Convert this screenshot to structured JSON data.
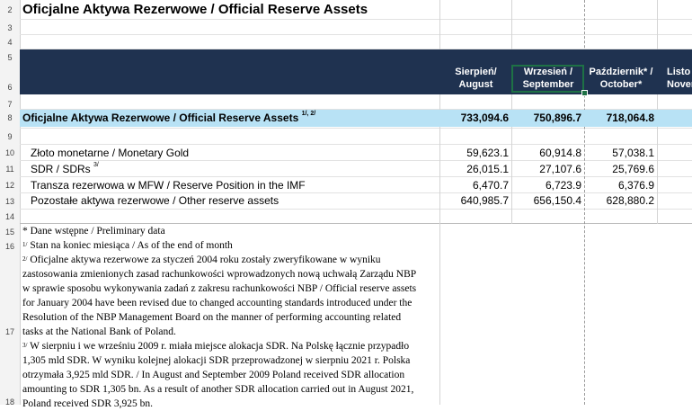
{
  "title": "Oficjalne Aktywa Rezerwowe / Official Reserve Assets",
  "row_numbers": [
    "2",
    "3",
    "4",
    "5",
    "6",
    "7",
    "8",
    "9",
    "10",
    "11",
    "12",
    "13",
    "14",
    "15",
    "16",
    "17",
    "18"
  ],
  "columns": [
    {
      "line1": "Sierpień/",
      "line2": "August"
    },
    {
      "line1": "Wrzesień /",
      "line2": "September"
    },
    {
      "line1": "Październik* /",
      "line2": "October*"
    },
    {
      "line1": "Listo",
      "line2": "Nover"
    }
  ],
  "main_row": {
    "label": "Oficjalne Aktywa Rezerwowe / Official Reserve Assets",
    "sup": "1/, 2/",
    "values": [
      "733,094.6",
      "750,896.7",
      "718,064.8"
    ]
  },
  "rows": [
    {
      "label": "Złoto monetarne / Monetary Gold",
      "sup": "",
      "values": [
        "59,623.1",
        "60,914.8",
        "57,038.1"
      ]
    },
    {
      "label": "SDR / SDRs",
      "sup": "3/",
      "values": [
        "26,015.1",
        "27,107.6",
        "25,769.6"
      ]
    },
    {
      "label": "Transza rezerwowa w MFW / Reserve Position in the IMF",
      "sup": "",
      "values": [
        "6,470.7",
        "6,723.9",
        "6,376.9"
      ]
    },
    {
      "label": "Pozostałe aktywa rezerwowe / Other reserve assets",
      "sup": "",
      "values": [
        "640,985.7",
        "656,150.4",
        "628,880.2"
      ]
    }
  ],
  "notes": {
    "n15": "* Dane wstępne / Preliminary data",
    "n16_sup": "1/",
    "n16": "Stan na koniec miesiąca / As of the end of month",
    "n17_sup": "2/",
    "n17_lines": [
      "Oficjalne aktywa rezerwowe za styczeń 2004 roku zostały zweryfikowane w wyniku",
      "zastosowania zmienionych zasad rachunkowości wprowadzonych nową uchwałą Zarządu NBP",
      "w sprawie sposobu wykonywania zadań z zakresu rachunkowości NBP / Official reserve assets",
      "for January 2004 have been revised due to changed accounting standards introduced under the",
      "Resolution of the NBP Management Board on the manner of performing accounting related",
      "tasks at the National Bank of Poland."
    ],
    "n18_sup": "3/",
    "n18_lines": [
      "W sierpniu i we wrześniu 2009 r. miała miejsce alokacja SDR. Na Polskę łącznie przypadło",
      "1,305 mld SDR. W wyniku kolejnej alokacji SDR przeprowadzonej w sierpniu 2021 r. Polska",
      "otrzymała 3,925 mld SDR. /  In August and September 2009 Poland received SDR allocation",
      "amounting to SDR 1,305 bn.  As a result of another SDR allocation carried out in August 2021,",
      "Poland received SDR 3,925 bn."
    ]
  }
}
